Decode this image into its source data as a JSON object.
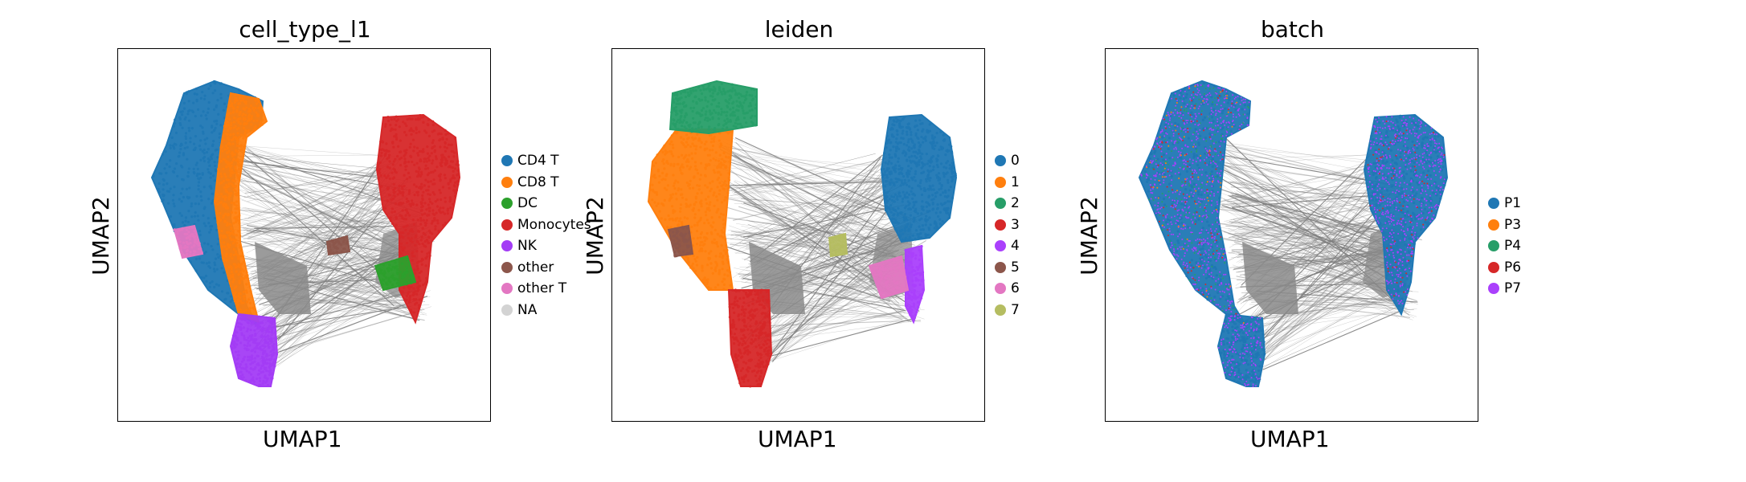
{
  "chart_data": [
    {
      "type": "scatter",
      "title": "cell_type_l1",
      "xlabel": "UMAP1",
      "ylabel": "UMAP2",
      "legend_position": "right",
      "legend": [
        {
          "label": "CD4 T",
          "color": "#1f77b4"
        },
        {
          "label": "CD8 T",
          "color": "#ff7f0e"
        },
        {
          "label": "DC",
          "color": "#2ca02c"
        },
        {
          "label": "Monocytes",
          "color": "#d62728"
        },
        {
          "label": "NK",
          "color": "#a33cf5"
        },
        {
          "label": "other",
          "color": "#8c564b"
        },
        {
          "label": "other T",
          "color": "#e377c2"
        },
        {
          "label": "NA",
          "color": "#d3d3d3"
        }
      ]
    },
    {
      "type": "scatter",
      "title": "leiden",
      "xlabel": "UMAP1",
      "ylabel": "UMAP2",
      "legend_position": "right",
      "legend": [
        {
          "label": "0",
          "color": "#1f77b4"
        },
        {
          "label": "1",
          "color": "#ff7f0e"
        },
        {
          "label": "2",
          "color": "#279e68"
        },
        {
          "label": "3",
          "color": "#d62728"
        },
        {
          "label": "4",
          "color": "#aa40fc"
        },
        {
          "label": "5",
          "color": "#8c564b"
        },
        {
          "label": "6",
          "color": "#e377c2"
        },
        {
          "label": "7",
          "color": "#b5bd61"
        }
      ]
    },
    {
      "type": "scatter",
      "title": "batch",
      "xlabel": "UMAP1",
      "ylabel": "UMAP2",
      "legend_position": "right",
      "legend": [
        {
          "label": "P1",
          "color": "#1f77b4"
        },
        {
          "label": "P3",
          "color": "#ff7f0e"
        },
        {
          "label": "P4",
          "color": "#279e68"
        },
        {
          "label": "P6",
          "color": "#d62728"
        },
        {
          "label": "P7",
          "color": "#aa40fc"
        }
      ]
    }
  ]
}
